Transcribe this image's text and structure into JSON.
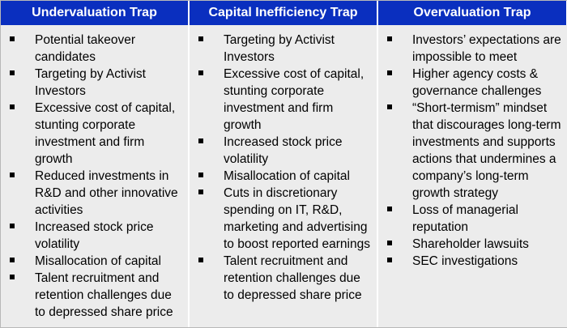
{
  "columns": [
    {
      "header": "Undervaluation Trap",
      "items": [
        "Potential takeover candidates",
        "Targeting by Activist Investors",
        "Excessive cost of capital, stunting corporate investment and firm growth",
        "Reduced investments in R&D and other innovative activities",
        "Increased stock price volatility",
        "Misallocation of capital",
        "Talent recruitment and retention challenges due to depressed share price"
      ]
    },
    {
      "header": "Capital Inefficiency Trap",
      "items": [
        "Targeting by Activist Investors",
        "Excessive cost of capital, stunting corporate investment and firm growth",
        "Increased stock price volatility",
        "Misallocation of capital",
        "Cuts in discretionary spending on IT, R&D, marketing and advertising to boost reported earnings",
        "Talent recruitment and retention challenges due to depressed share price"
      ]
    },
    {
      "header": "Overvaluation Trap",
      "items": [
        "Investors’ expectations are impossible to meet",
        "Higher agency  costs & governance challenges",
        "“Short-termism” mindset that discourages long-term investments and supports actions that undermines a company’s long-term growth strategy",
        "Loss of managerial reputation",
        "Shareholder lawsuits",
        "SEC investigations"
      ]
    }
  ],
  "colors": {
    "header_bg": "#0a2fbf",
    "header_text": "#ffffff",
    "body_bg": "#ececec"
  }
}
